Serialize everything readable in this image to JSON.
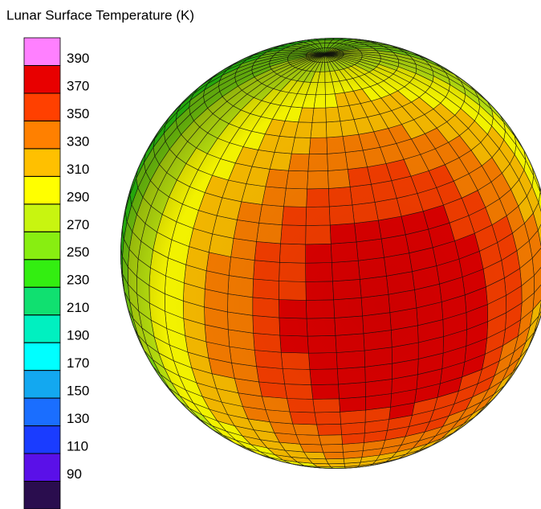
{
  "chart_data": {
    "type": "surface",
    "title": "Lunar Surface Temperature (K)",
    "clim": [
      70,
      410
    ],
    "cticks": [
      90,
      110,
      130,
      150,
      170,
      190,
      210,
      230,
      250,
      270,
      290,
      310,
      330,
      350,
      370,
      390
    ],
    "colors": [
      "#2a0d4e",
      "#5a10e8",
      "#1a3cff",
      "#1a6eff",
      "#13a8f0",
      "#00ffff",
      "#00f0c0",
      "#10e070",
      "#33ee11",
      "#88ee11",
      "#c8f510",
      "#ffff00",
      "#ffc000",
      "#ff8000",
      "#ff4000",
      "#e80000",
      "#ff80ff"
    ]
  }
}
